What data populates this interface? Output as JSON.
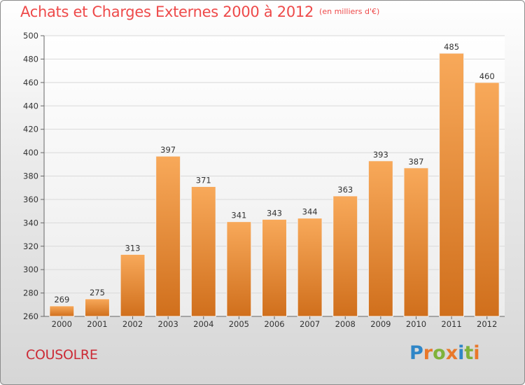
{
  "header": {
    "title": "Achats et Charges Externes 2000 à 2012",
    "subtitle": "(en milliers d'€)"
  },
  "footer": {
    "commune": "COUSOLRE",
    "logo_text": "Proxiti"
  },
  "colors": {
    "title": "#ee4a4a",
    "commune": "#cc2a35",
    "bar_top": "#f8a95a",
    "bar_bottom": "#d06f1c",
    "logo_letters": [
      "#2f86c7",
      "#e9782a",
      "#7fb23a",
      "#e9782a",
      "#2f86c7",
      "#7fb23a",
      "#e9782a"
    ]
  },
  "chart_data": {
    "type": "bar",
    "categories": [
      "2000",
      "2001",
      "2002",
      "2003",
      "2004",
      "2005",
      "2006",
      "2007",
      "2008",
      "2009",
      "2010",
      "2011",
      "2012"
    ],
    "values": [
      269,
      275,
      313,
      397,
      371,
      341,
      343,
      344,
      363,
      393,
      387,
      485,
      460
    ],
    "ylim": [
      260,
      500
    ],
    "yticks": [
      260,
      280,
      300,
      320,
      340,
      360,
      380,
      400,
      420,
      440,
      460,
      480,
      500
    ],
    "grid": true,
    "xlabel": "",
    "ylabel": ""
  }
}
